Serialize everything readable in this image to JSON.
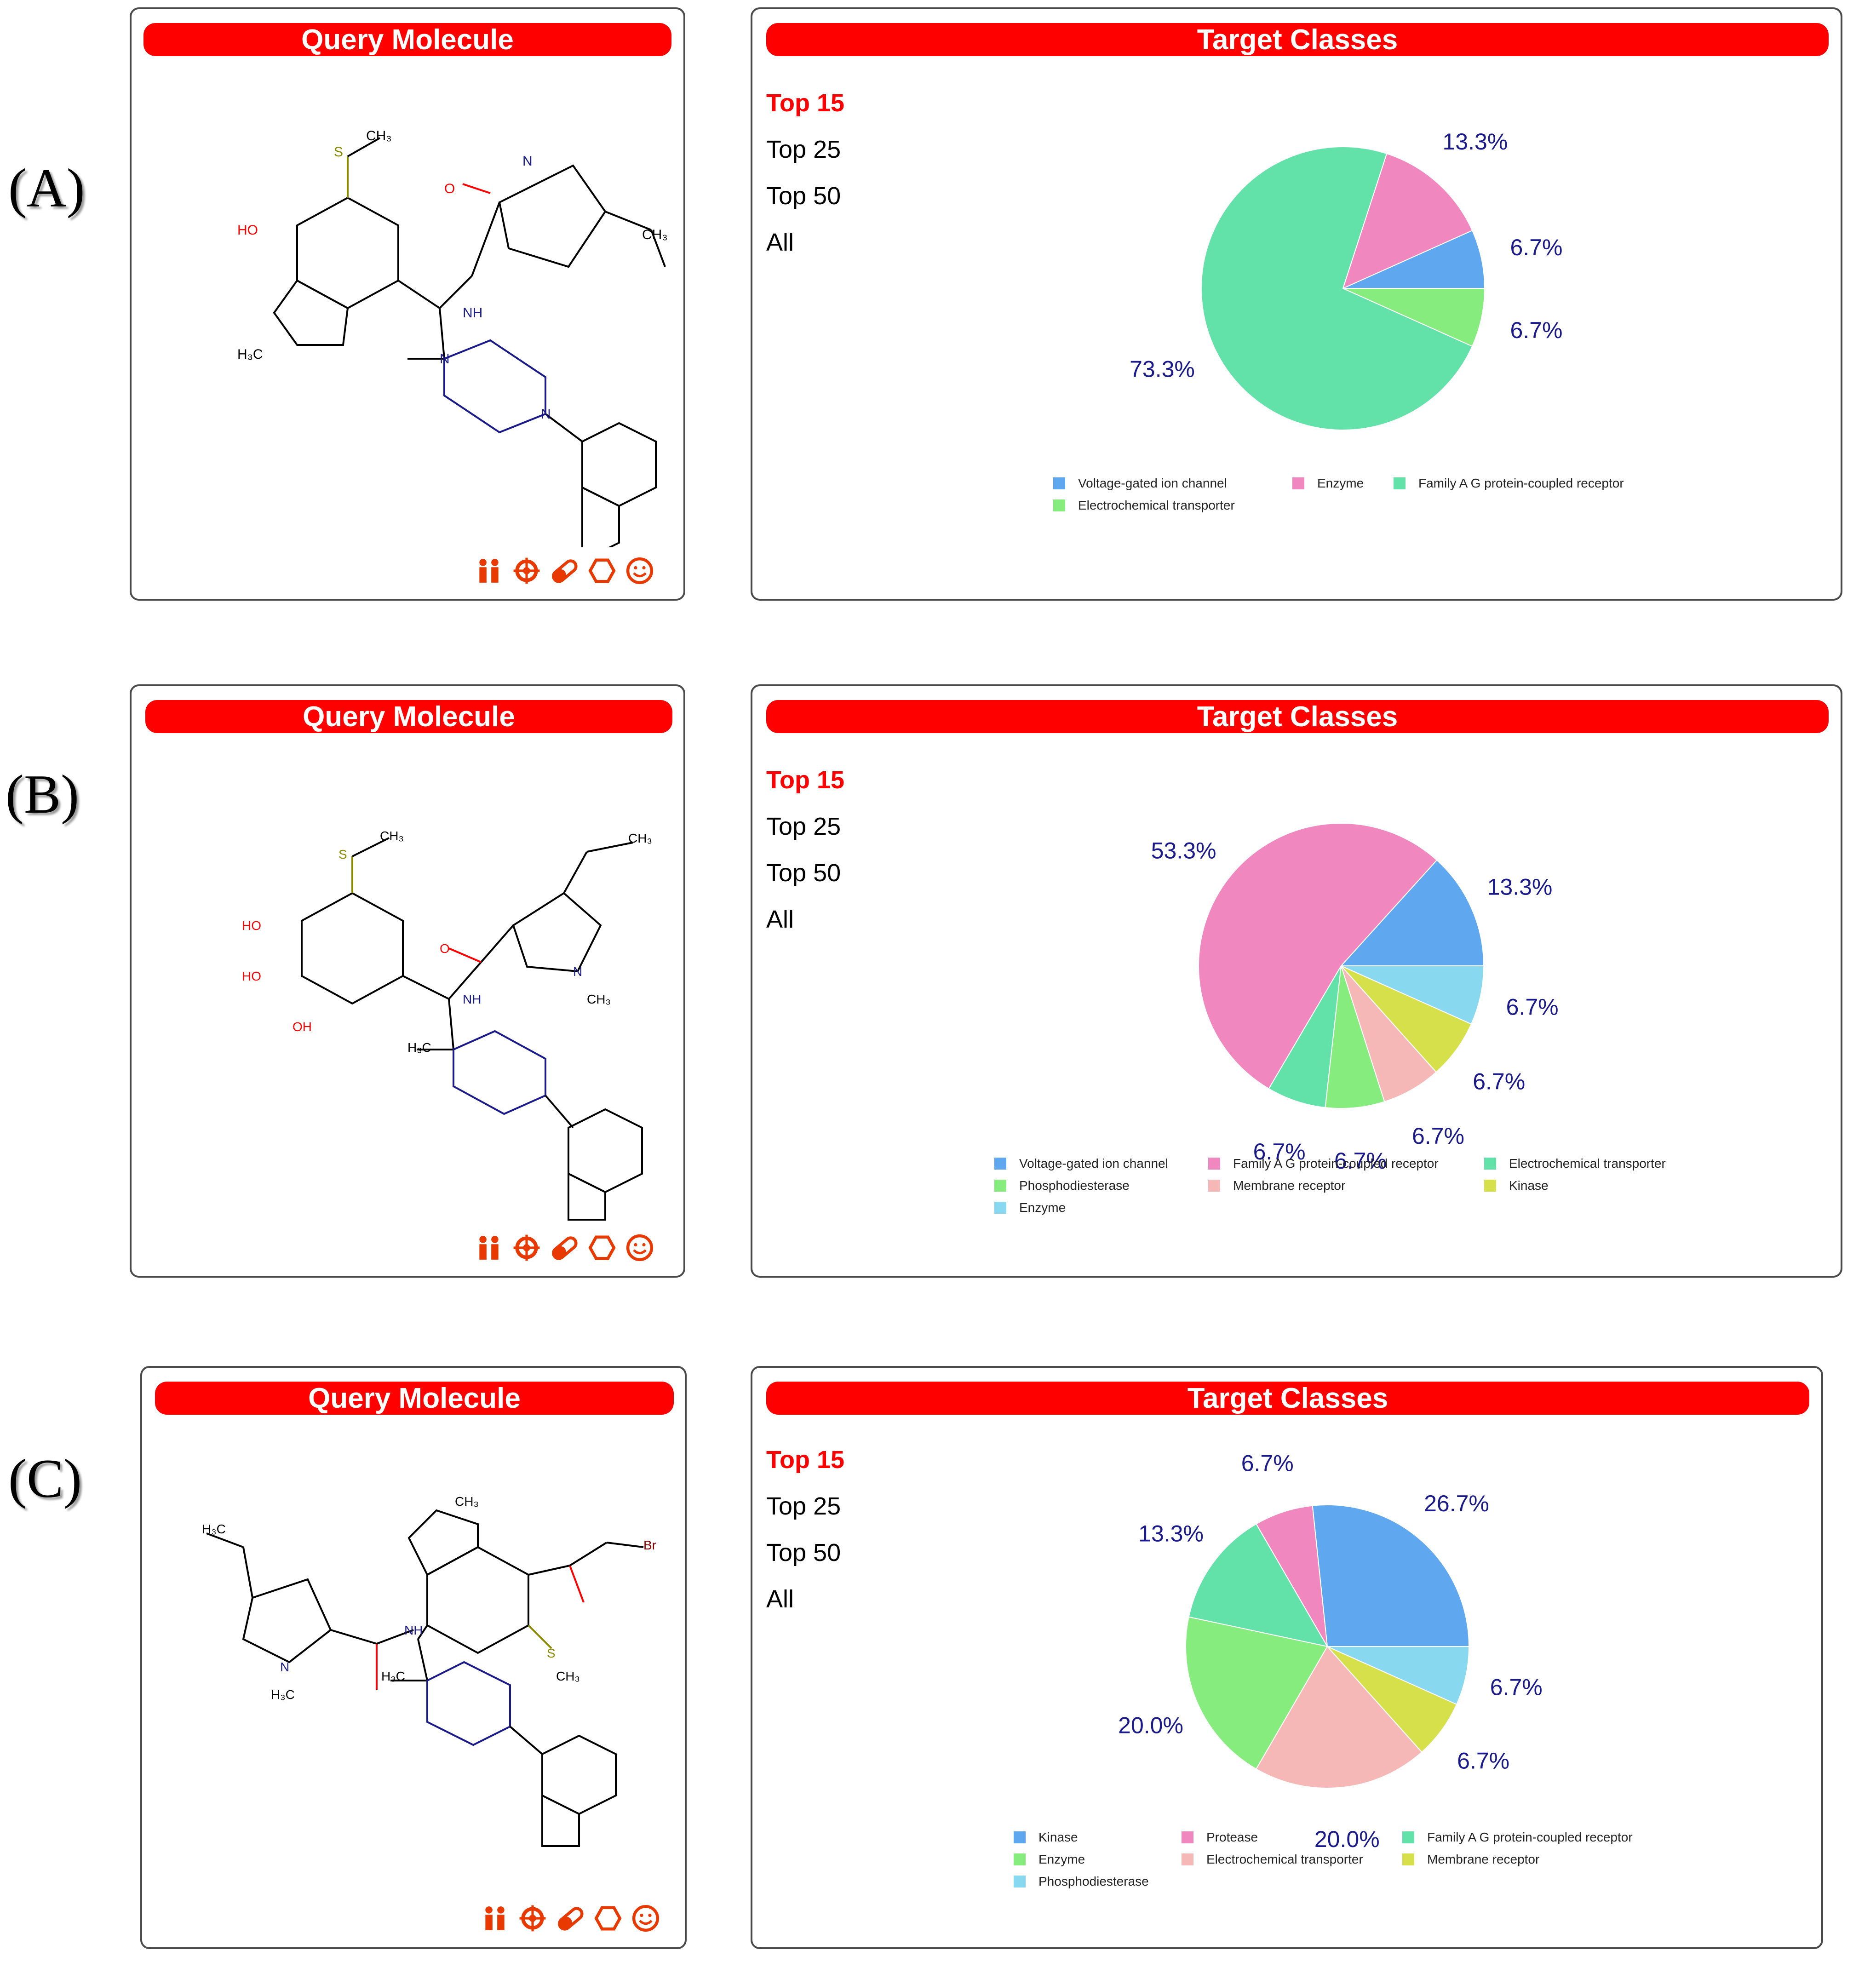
{
  "panels": [
    {
      "label": "(A)",
      "query_title": "Query Molecule",
      "target_title": "Target Classes",
      "menu": [
        "Top 15",
        "Top 25",
        "Top 50",
        "All"
      ],
      "active_menu": "Top 15",
      "chart_data": {
        "type": "pie",
        "slices": [
          {
            "name": "Voltage-gated ion channel",
            "value": 6.7,
            "label": "6.7%",
            "color": "#5fa8f0"
          },
          {
            "name": "Enzyme",
            "value": 13.3,
            "label": "13.3%",
            "color": "#f087be"
          },
          {
            "name": "Family A G protein-coupled receptor",
            "value": 73.3,
            "label": "73.3%",
            "color": "#62e2a8"
          },
          {
            "name": "Electrochemical transporter",
            "value": 6.7,
            "label": "6.7%",
            "color": "#85ec7d"
          }
        ]
      }
    },
    {
      "label": "(B)",
      "query_title": "Query Molecule",
      "target_title": "Target Classes",
      "menu": [
        "Top 15",
        "Top 25",
        "Top 50",
        "All"
      ],
      "active_menu": "Top 15",
      "chart_data": {
        "type": "pie",
        "slices": [
          {
            "name": "Voltage-gated ion channel",
            "value": 13.3,
            "label": "13.3%",
            "color": "#5fa8f0"
          },
          {
            "name": "Family A G protein-coupled receptor",
            "value": 53.3,
            "label": "53.3%",
            "color": "#f087be"
          },
          {
            "name": "Electrochemical transporter",
            "value": 6.7,
            "label": "6.7%",
            "color": "#62e2a8"
          },
          {
            "name": "Phosphodiesterase",
            "value": 6.7,
            "label": "6.7%",
            "color": "#85ec7d"
          },
          {
            "name": "Membrane receptor",
            "value": 6.7,
            "label": "6.7%",
            "color": "#f5b8b6"
          },
          {
            "name": "Kinase",
            "value": 6.7,
            "label": "6.7%",
            "color": "#d5e04a"
          },
          {
            "name": "Enzyme",
            "value": 6.7,
            "label": "6.7%",
            "color": "#88d8f0"
          }
        ]
      }
    },
    {
      "label": "(C)",
      "query_title": "Query Molecule",
      "target_title": "Target Classes",
      "menu": [
        "Top 15",
        "Top 25",
        "Top 50",
        "All"
      ],
      "active_menu": "Top 15",
      "chart_data": {
        "type": "pie",
        "slices": [
          {
            "name": "Kinase",
            "value": 26.7,
            "label": "26.7%",
            "color": "#5fa8f0"
          },
          {
            "name": "Protease",
            "value": 6.7,
            "label": "6.7%",
            "color": "#f087be"
          },
          {
            "name": "Family A G protein-coupled receptor",
            "value": 13.3,
            "label": "13.3%",
            "color": "#62e2a8"
          },
          {
            "name": "Enzyme",
            "value": 20.0,
            "label": "20.0%",
            "color": "#85ec7d"
          },
          {
            "name": "Electrochemical transporter",
            "value": 20.0,
            "label": "20.0%",
            "color": "#f5b8b6"
          },
          {
            "name": "Membrane receptor",
            "value": 6.7,
            "label": "6.7%",
            "color": "#d5e04a"
          },
          {
            "name": "Phosphodiesterase",
            "value": 6.7,
            "label": "6.7%",
            "color": "#88d8f0"
          }
        ]
      }
    }
  ],
  "icon_names": [
    "people-icon",
    "target-icon",
    "pill-icon",
    "hexagon-icon",
    "smiley-icon"
  ]
}
